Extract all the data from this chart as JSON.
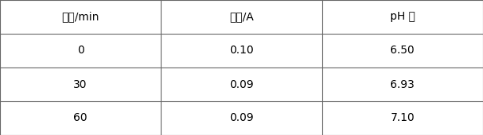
{
  "headers": [
    "时间/min",
    "电流/A",
    "pH 值"
  ],
  "rows": [
    [
      "0",
      "0.10",
      "6.50"
    ],
    [
      "30",
      "0.09",
      "6.93"
    ],
    [
      "60",
      "0.09",
      "7.10"
    ]
  ],
  "bg_color": "#ffffff",
  "border_color": "#666666",
  "header_bg": "#ffffff",
  "text_color": "#000000",
  "font_size": 10,
  "header_font_size": 10
}
